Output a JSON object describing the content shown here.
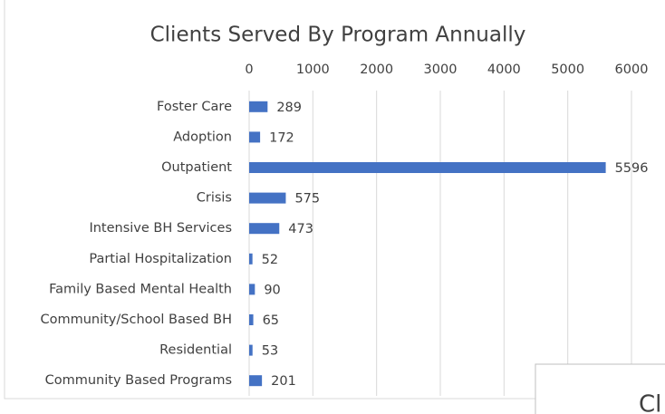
{
  "chart_data": {
    "type": "bar",
    "orientation": "horizontal",
    "title": "Clients Served By Program Annually",
    "categories": [
      "Foster Care",
      "Adoption",
      "Outpatient",
      "Crisis",
      "Intensive BH Services",
      "Partial Hospitalization",
      "Family Based Mental Health",
      "Community/School Based BH",
      "Residential",
      "Community Based Programs"
    ],
    "values": [
      289,
      172,
      5596,
      575,
      473,
      52,
      90,
      65,
      53,
      201
    ],
    "color": "#4472c4",
    "xlim": [
      0,
      6000
    ],
    "xticks": [
      0,
      1000,
      2000,
      3000,
      4000,
      5000,
      6000
    ],
    "grid": true
  },
  "overlay": {
    "text": "Cl"
  }
}
